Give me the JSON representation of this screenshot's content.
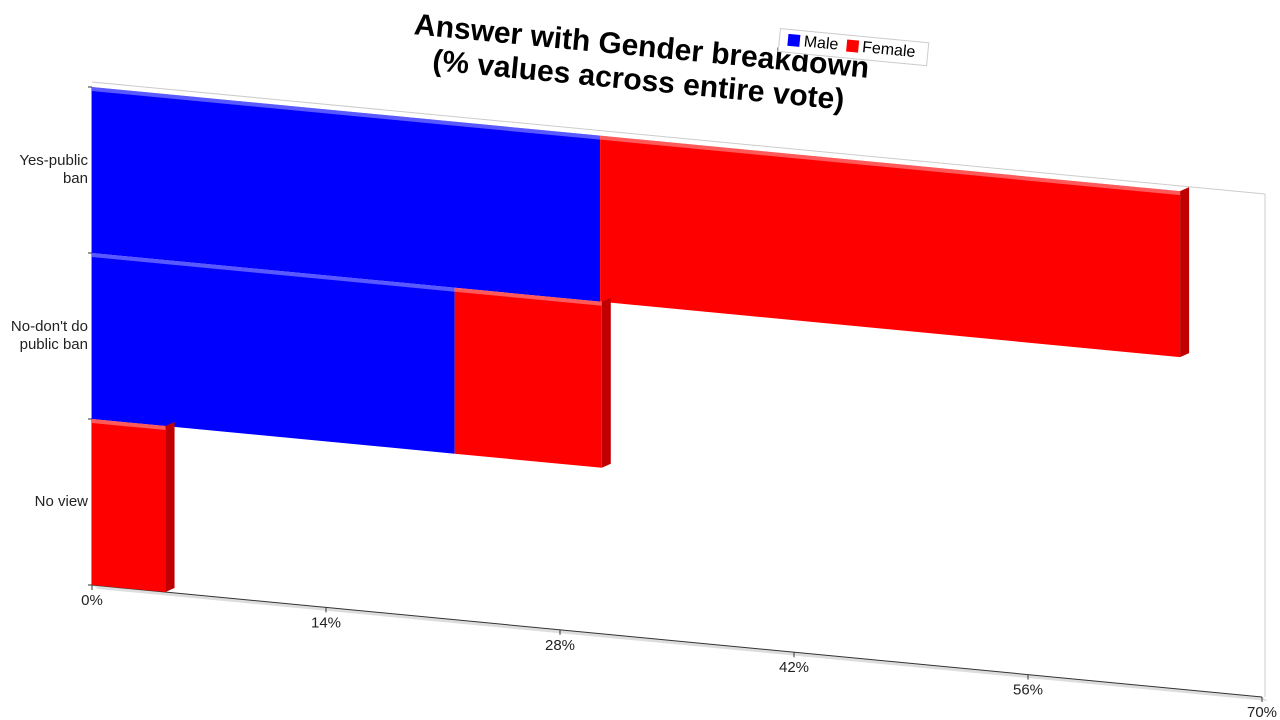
{
  "chart_data": {
    "type": "stacked-bar-horizontal",
    "title": "Answer with Gender breakdown\n(% values across entire vote)",
    "categories": [
      "Yes-public ban",
      "No-don't do public ban",
      "No view"
    ],
    "series": [
      {
        "name": "Male",
        "color": "#0000ff",
        "values": [
          30.4,
          21.7,
          0
        ]
      },
      {
        "name": "Female",
        "color": "#ff0000",
        "values": [
          34.7,
          8.8,
          4.4
        ]
      }
    ],
    "xlim": [
      0,
      70
    ],
    "xticks": [
      {
        "value": 0,
        "label": "0%"
      },
      {
        "value": 14,
        "label": "14%"
      },
      {
        "value": 28,
        "label": "28%"
      },
      {
        "value": 42,
        "label": "42%"
      },
      {
        "value": 56,
        "label": "56%"
      },
      {
        "value": 70,
        "label": "70%"
      }
    ],
    "legend": "top"
  }
}
